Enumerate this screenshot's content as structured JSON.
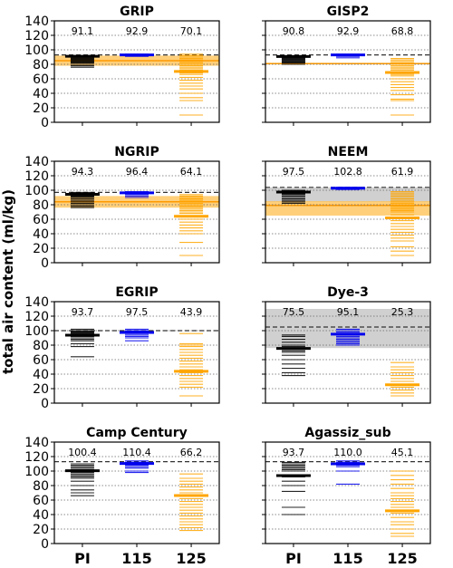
{
  "figure": {
    "ylabel": "total air content (ml/kg)",
    "colors": {
      "PI": "#000000",
      "115ka": "#0000ee",
      "125ka": "#ffa500",
      "band_orange": "#ffbf4d",
      "band_gray": "#c8c8c8",
      "dash": "#333333"
    }
  },
  "chart_data": [
    {
      "type": "scatter",
      "title": "GRIP",
      "categories": [
        "PI",
        "115 ka",
        "125 ka"
      ],
      "ylim": [
        0,
        140
      ],
      "yticks": [
        0,
        20,
        40,
        60,
        80,
        100,
        120,
        140
      ],
      "grid": "horizontal dotted",
      "observation_line": 93,
      "observation_band": {
        "color": "orange",
        "range": [
          78,
          92
        ],
        "center": 85
      },
      "means": [
        "91.1",
        "92.9",
        "70.1"
      ],
      "series": [
        {
          "category": "PI",
          "mean": 91.1,
          "members": [
            92,
            91,
            90,
            89,
            88,
            87,
            86,
            85,
            84,
            83,
            82,
            80,
            78,
            76
          ]
        },
        {
          "category": "115 ka",
          "mean": 92.9,
          "members": [
            94,
            93,
            92.5,
            92,
            91.5,
            91
          ]
        },
        {
          "category": "125 ka",
          "mean": 70.1,
          "members": [
            94,
            92,
            90,
            88,
            86,
            84,
            82,
            80,
            78,
            76,
            74,
            72,
            70,
            68,
            66,
            62,
            58,
            54,
            50,
            46,
            40,
            34,
            30,
            10
          ]
        }
      ]
    },
    {
      "type": "scatter",
      "title": "GISP2",
      "categories": [
        "PI",
        "115 ka",
        "125 ka"
      ],
      "ylim": [
        0,
        140
      ],
      "yticks": [
        0,
        20,
        40,
        60,
        80,
        100,
        120,
        140
      ],
      "grid": "horizontal dotted",
      "observation_line": 93,
      "observation_band": {
        "color": "orange",
        "range": [
          80,
          82
        ],
        "center": 81
      },
      "means": [
        "90.8",
        "92.9",
        "68.8"
      ],
      "series": [
        {
          "category": "PI",
          "mean": 90.8,
          "members": [
            92,
            91,
            90,
            89,
            88,
            87,
            86,
            85,
            84,
            83,
            82,
            80
          ]
        },
        {
          "category": "115 ka",
          "mean": 92.9,
          "members": [
            94,
            93,
            92.5,
            92,
            91,
            89
          ]
        },
        {
          "category": "125 ka",
          "mean": 68.8,
          "members": [
            88,
            86,
            84,
            82,
            80,
            78,
            76,
            74,
            72,
            70,
            68,
            66,
            64,
            60,
            56,
            52,
            48,
            44,
            38,
            32,
            30,
            10
          ]
        }
      ]
    },
    {
      "type": "scatter",
      "title": "NGRIP",
      "categories": [
        "PI",
        "115 ka",
        "125 ka"
      ],
      "ylim": [
        0,
        140
      ],
      "yticks": [
        0,
        20,
        40,
        60,
        80,
        100,
        120,
        140
      ],
      "grid": "horizontal dotted",
      "observation_line": 97,
      "observation_band": {
        "color": "orange",
        "range": [
          76,
          92
        ],
        "center": 84
      },
      "means": [
        "94.3",
        "96.4",
        "64.1"
      ],
      "series": [
        {
          "category": "PI",
          "mean": 94.3,
          "members": [
            97,
            96,
            95,
            94,
            93,
            92,
            91,
            90,
            88,
            86,
            84,
            82,
            80,
            78,
            76
          ]
        },
        {
          "category": "115 ka",
          "mean": 96.4,
          "members": [
            98,
            97,
            96,
            95,
            94,
            92,
            90
          ]
        },
        {
          "category": "125 ka",
          "mean": 64.1,
          "members": [
            94,
            92,
            90,
            88,
            86,
            84,
            82,
            80,
            78,
            76,
            74,
            72,
            70,
            68,
            64,
            60,
            56,
            52,
            48,
            44,
            40,
            28,
            10
          ]
        }
      ]
    },
    {
      "type": "scatter",
      "title": "NEEM",
      "categories": [
        "PI",
        "115 ka",
        "125 ka"
      ],
      "ylim": [
        0,
        140
      ],
      "yticks": [
        0,
        20,
        40,
        60,
        80,
        100,
        120,
        140
      ],
      "grid": "horizontal dotted",
      "observation_line": 104,
      "observation_band": {
        "color": "orange",
        "range": [
          65,
          85
        ],
        "center": 79
      },
      "observation_band_2": {
        "color": "gray",
        "range": [
          84,
          104
        ]
      },
      "means": [
        "97.5",
        "102.8",
        "61.9"
      ],
      "series": [
        {
          "category": "PI",
          "mean": 97.5,
          "members": [
            100,
            99,
            98,
            97,
            96,
            95,
            94,
            92,
            90,
            88,
            86,
            84,
            82
          ]
        },
        {
          "category": "115 ka",
          "mean": 102.8,
          "members": [
            104,
            103,
            102,
            101
          ]
        },
        {
          "category": "125 ka",
          "mean": 61.9,
          "members": [
            98,
            96,
            94,
            92,
            90,
            88,
            86,
            84,
            82,
            80,
            78,
            76,
            74,
            72,
            70,
            66,
            62,
            58,
            54,
            50,
            46,
            42,
            38,
            34,
            30,
            22,
            16,
            10
          ]
        }
      ]
    },
    {
      "type": "scatter",
      "title": "EGRIP",
      "categories": [
        "PI",
        "115 ka",
        "125 ka"
      ],
      "ylim": [
        0,
        140
      ],
      "yticks": [
        0,
        20,
        40,
        60,
        80,
        100,
        120,
        140
      ],
      "grid": "horizontal dotted",
      "observation_line": 100,
      "means": [
        "93.7",
        "97.5",
        "43.9"
      ],
      "series": [
        {
          "category": "PI",
          "mean": 93.7,
          "members": [
            102,
            100,
            99,
            98,
            97,
            96,
            95,
            94,
            92,
            90,
            88,
            86,
            82,
            78,
            64
          ]
        },
        {
          "category": "115 ka",
          "mean": 97.5,
          "members": [
            102,
            100,
            99,
            98,
            96,
            94,
            92,
            90,
            86
          ]
        },
        {
          "category": "125 ka",
          "mean": 43.9,
          "members": [
            96,
            82,
            80,
            78,
            74,
            70,
            66,
            62,
            58,
            54,
            50,
            46,
            42,
            38,
            34,
            30,
            26,
            22,
            10
          ]
        }
      ]
    },
    {
      "type": "scatter",
      "title": "Dye-3",
      "categories": [
        "PI",
        "115 ka",
        "125 ka"
      ],
      "ylim": [
        0,
        140
      ],
      "yticks": [
        0,
        20,
        40,
        60,
        80,
        100,
        120,
        140
      ],
      "grid": "horizontal dotted",
      "observation_line": 105,
      "observation_band_2": {
        "color": "gray",
        "range": [
          76,
          130
        ]
      },
      "means": [
        "75.5",
        "95.1",
        "25.3"
      ],
      "series": [
        {
          "category": "PI",
          "mean": 75.5,
          "members": [
            94,
            92,
            88,
            84,
            80,
            78,
            76,
            74,
            72,
            70,
            66,
            60,
            54,
            48,
            42,
            38
          ]
        },
        {
          "category": "115 ka",
          "mean": 95.1,
          "members": [
            102,
            100,
            98,
            96,
            94,
            92,
            90,
            88,
            86,
            84,
            82,
            80
          ]
        },
        {
          "category": "125 ka",
          "mean": 25.3,
          "members": [
            56,
            50,
            46,
            42,
            38,
            34,
            30,
            26,
            22,
            18,
            14,
            10
          ]
        }
      ]
    },
    {
      "type": "scatter",
      "title": "Camp Century",
      "categories": [
        "PI",
        "115 ka",
        "125 ka"
      ],
      "ylim": [
        0,
        140
      ],
      "yticks": [
        0,
        20,
        40,
        60,
        80,
        100,
        120,
        140
      ],
      "grid": "horizontal dotted",
      "observation_line": 113,
      "means": [
        "100.4",
        "110.4",
        "66.2"
      ],
      "series": [
        {
          "category": "PI",
          "mean": 100.4,
          "members": [
            110,
            108,
            106,
            104,
            102,
            100,
            98,
            96,
            94,
            92,
            90,
            86,
            80,
            74,
            70,
            66
          ]
        },
        {
          "category": "115 ka",
          "mean": 110.4,
          "members": [
            114,
            112,
            111,
            110,
            109,
            108,
            106,
            104,
            100,
            98
          ]
        },
        {
          "category": "125 ka",
          "mean": 66.2,
          "members": [
            96,
            90,
            86,
            82,
            78,
            74,
            70,
            66,
            62,
            58,
            54,
            50,
            46,
            42,
            38,
            34,
            30,
            26,
            22,
            18
          ]
        }
      ]
    },
    {
      "type": "scatter",
      "title": "Agassiz_sub",
      "categories": [
        "PI",
        "115 ka",
        "125 ka"
      ],
      "ylim": [
        0,
        140
      ],
      "yticks": [
        0,
        20,
        40,
        60,
        80,
        100,
        120,
        140
      ],
      "grid": "horizontal dotted",
      "observation_line": 113,
      "means": [
        "93.7",
        "110.0",
        "45.1"
      ],
      "series": [
        {
          "category": "PI",
          "mean": 93.7,
          "members": [
            112,
            110,
            108,
            106,
            104,
            102,
            100,
            94,
            92,
            86,
            80,
            72,
            50,
            40
          ]
        },
        {
          "category": "115 ka",
          "mean": 110.0,
          "members": [
            114,
            112,
            111,
            110,
            108,
            106,
            100,
            82
          ]
        },
        {
          "category": "125 ka",
          "mean": 45.1,
          "members": [
            100,
            94,
            88,
            82,
            76,
            70,
            66,
            62,
            58,
            54,
            50,
            46,
            42,
            36,
            30,
            26,
            20,
            14,
            10
          ]
        }
      ]
    }
  ]
}
